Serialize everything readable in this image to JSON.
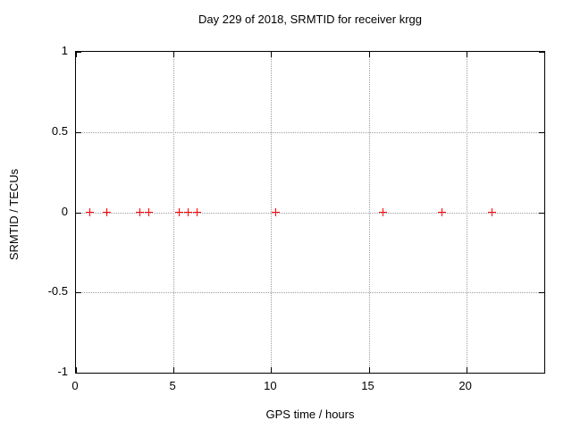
{
  "chart_data": {
    "type": "scatter",
    "title": "Day 229 of 2018, SRMTID for receiver krgg",
    "xlabel": "GPS time / hours",
    "ylabel": "SRMTID / TECUs",
    "xlim": [
      0,
      24
    ],
    "ylim": [
      -1,
      1
    ],
    "xticks": [
      0,
      5,
      10,
      15,
      20
    ],
    "yticks": [
      1,
      0.5,
      0,
      -0.5,
      -1
    ],
    "grid": true,
    "legend": "none",
    "marker": {
      "shape": "plus",
      "color": "#ff0000",
      "size": 9
    },
    "series": [
      {
        "name": "SRMTID",
        "x": [
          0.73,
          1.6,
          3.28,
          3.75,
          5.29,
          5.75,
          6.2,
          10.22,
          15.74,
          18.75,
          21.31
        ],
        "y": [
          0,
          0,
          0,
          0,
          0,
          0,
          0,
          0,
          0,
          0,
          0
        ]
      }
    ]
  },
  "colors": {
    "background": "#ffffff",
    "border": "#000000",
    "grid": "#9e9e9e",
    "marker": "#ff0000",
    "text": "#000000"
  }
}
